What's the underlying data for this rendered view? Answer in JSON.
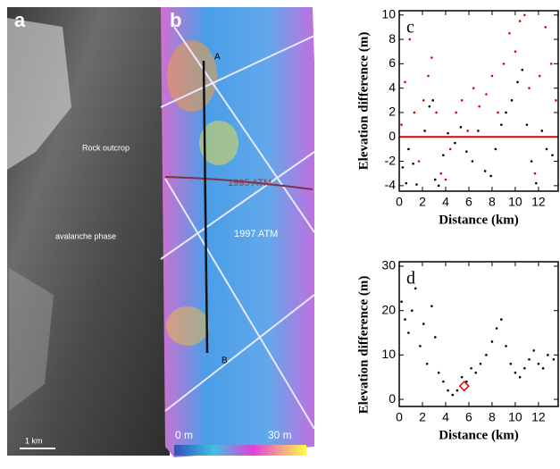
{
  "image_panels": {
    "a": {
      "label": "a",
      "annotations": [
        "Rock outcrop",
        "avalanche phase"
      ],
      "scale_bar": "1 km"
    },
    "b": {
      "label": "b",
      "track_start": "A",
      "track_end": "B",
      "lines": [
        "1995 ATM",
        "1997 ATM"
      ],
      "colorbar_min": "0 m",
      "colorbar_max": "30 m"
    }
  },
  "chart_data": [
    {
      "type": "scatter",
      "panel_label": "c",
      "xlabel": "Distance (km)",
      "ylabel": "Elevation difference (m)",
      "xlim": [
        0,
        13.7
      ],
      "xticks": [
        0,
        2,
        4,
        6,
        8,
        10,
        12
      ],
      "ylim": [
        -4.45,
        10.35
      ],
      "yticks": [
        -4,
        -2,
        0,
        2,
        4,
        6,
        8,
        10
      ],
      "reference_line": {
        "y": 0,
        "color": "#e00000"
      },
      "series": [
        {
          "color": "#000000",
          "x": [
            0.3,
            0.6,
            0.8,
            1.2,
            1.5,
            2.2,
            2.6,
            2.9,
            3.1,
            3.4,
            3.8,
            4.2,
            4.8,
            5.3,
            5.8,
            6.3,
            6.8,
            7.4,
            7.9,
            8.3,
            8.8,
            9.2,
            9.7,
            10.2,
            10.6,
            11.0,
            11.4,
            11.8,
            12.3,
            12.7,
            13.2
          ],
          "values": [
            -2.5,
            -3.8,
            -1,
            -2.2,
            -3.9,
            0.5,
            2.5,
            3,
            -3.5,
            -4,
            -1.5,
            0.3,
            -0.5,
            0.8,
            -1.2,
            -2,
            0.5,
            -2.8,
            -3.2,
            -1,
            1,
            2,
            3,
            4.5,
            5.5,
            1,
            -2,
            -3.8,
            0.5,
            -1,
            -1.5
          ]
        },
        {
          "color": "#e00000",
          "x": [
            0.2,
            0.5,
            0.9,
            1.3,
            1.7,
            2.1,
            2.5,
            2.8,
            3.2,
            3.6,
            4.0,
            4.4,
            4.9,
            5.4,
            5.9,
            6.4,
            6.9,
            7.5,
            8.0,
            8.5,
            9.0,
            9.5,
            10.0,
            10.4,
            10.8,
            11.2,
            11.7,
            12.1,
            12.6,
            13.1,
            13.5
          ],
          "values": [
            1,
            4.5,
            8,
            2,
            -2,
            3,
            5,
            6.5,
            2,
            -3,
            -3.5,
            -1,
            2,
            3,
            0.5,
            4,
            2.5,
            3.5,
            5,
            2,
            6,
            8.5,
            7,
            9.5,
            10,
            4,
            -3,
            5,
            9,
            6,
            3
          ]
        }
      ]
    },
    {
      "type": "scatter",
      "panel_label": "d",
      "xlabel": "Distance (km)",
      "ylabel": "Elevation difference (m)",
      "xlim": [
        0,
        13.7
      ],
      "xticks": [
        0,
        2,
        4,
        6,
        8,
        10,
        12
      ],
      "ylim": [
        -1.6,
        31
      ],
      "yticks": [
        0,
        10,
        20,
        30
      ],
      "series": [
        {
          "color": "#000000",
          "x": [
            0.2,
            0.5,
            0.8,
            1.1,
            1.4,
            1.8,
            2.1,
            2.4,
            2.8,
            3.1,
            3.4,
            3.8,
            4.2,
            4.6,
            5.0,
            5.4,
            5.8,
            6.2,
            6.6,
            7.0,
            7.5,
            8.0,
            8.4,
            8.8,
            9.2,
            9.6,
            10.0,
            10.4,
            10.8,
            11.2,
            11.6,
            12.0,
            12.4,
            12.8,
            13.3
          ],
          "values": [
            22,
            18,
            15,
            20,
            25,
            12,
            17,
            8,
            21,
            14,
            6,
            4,
            2,
            1,
            2,
            5,
            4,
            7,
            6,
            8,
            10,
            13,
            16,
            18,
            12,
            8,
            6,
            5,
            7,
            9,
            11,
            8,
            7,
            10,
            9
          ]
        },
        {
          "color": "#e00000",
          "marker": "diamond",
          "x": [
            5.6
          ],
          "values": [
            3
          ]
        }
      ]
    }
  ]
}
